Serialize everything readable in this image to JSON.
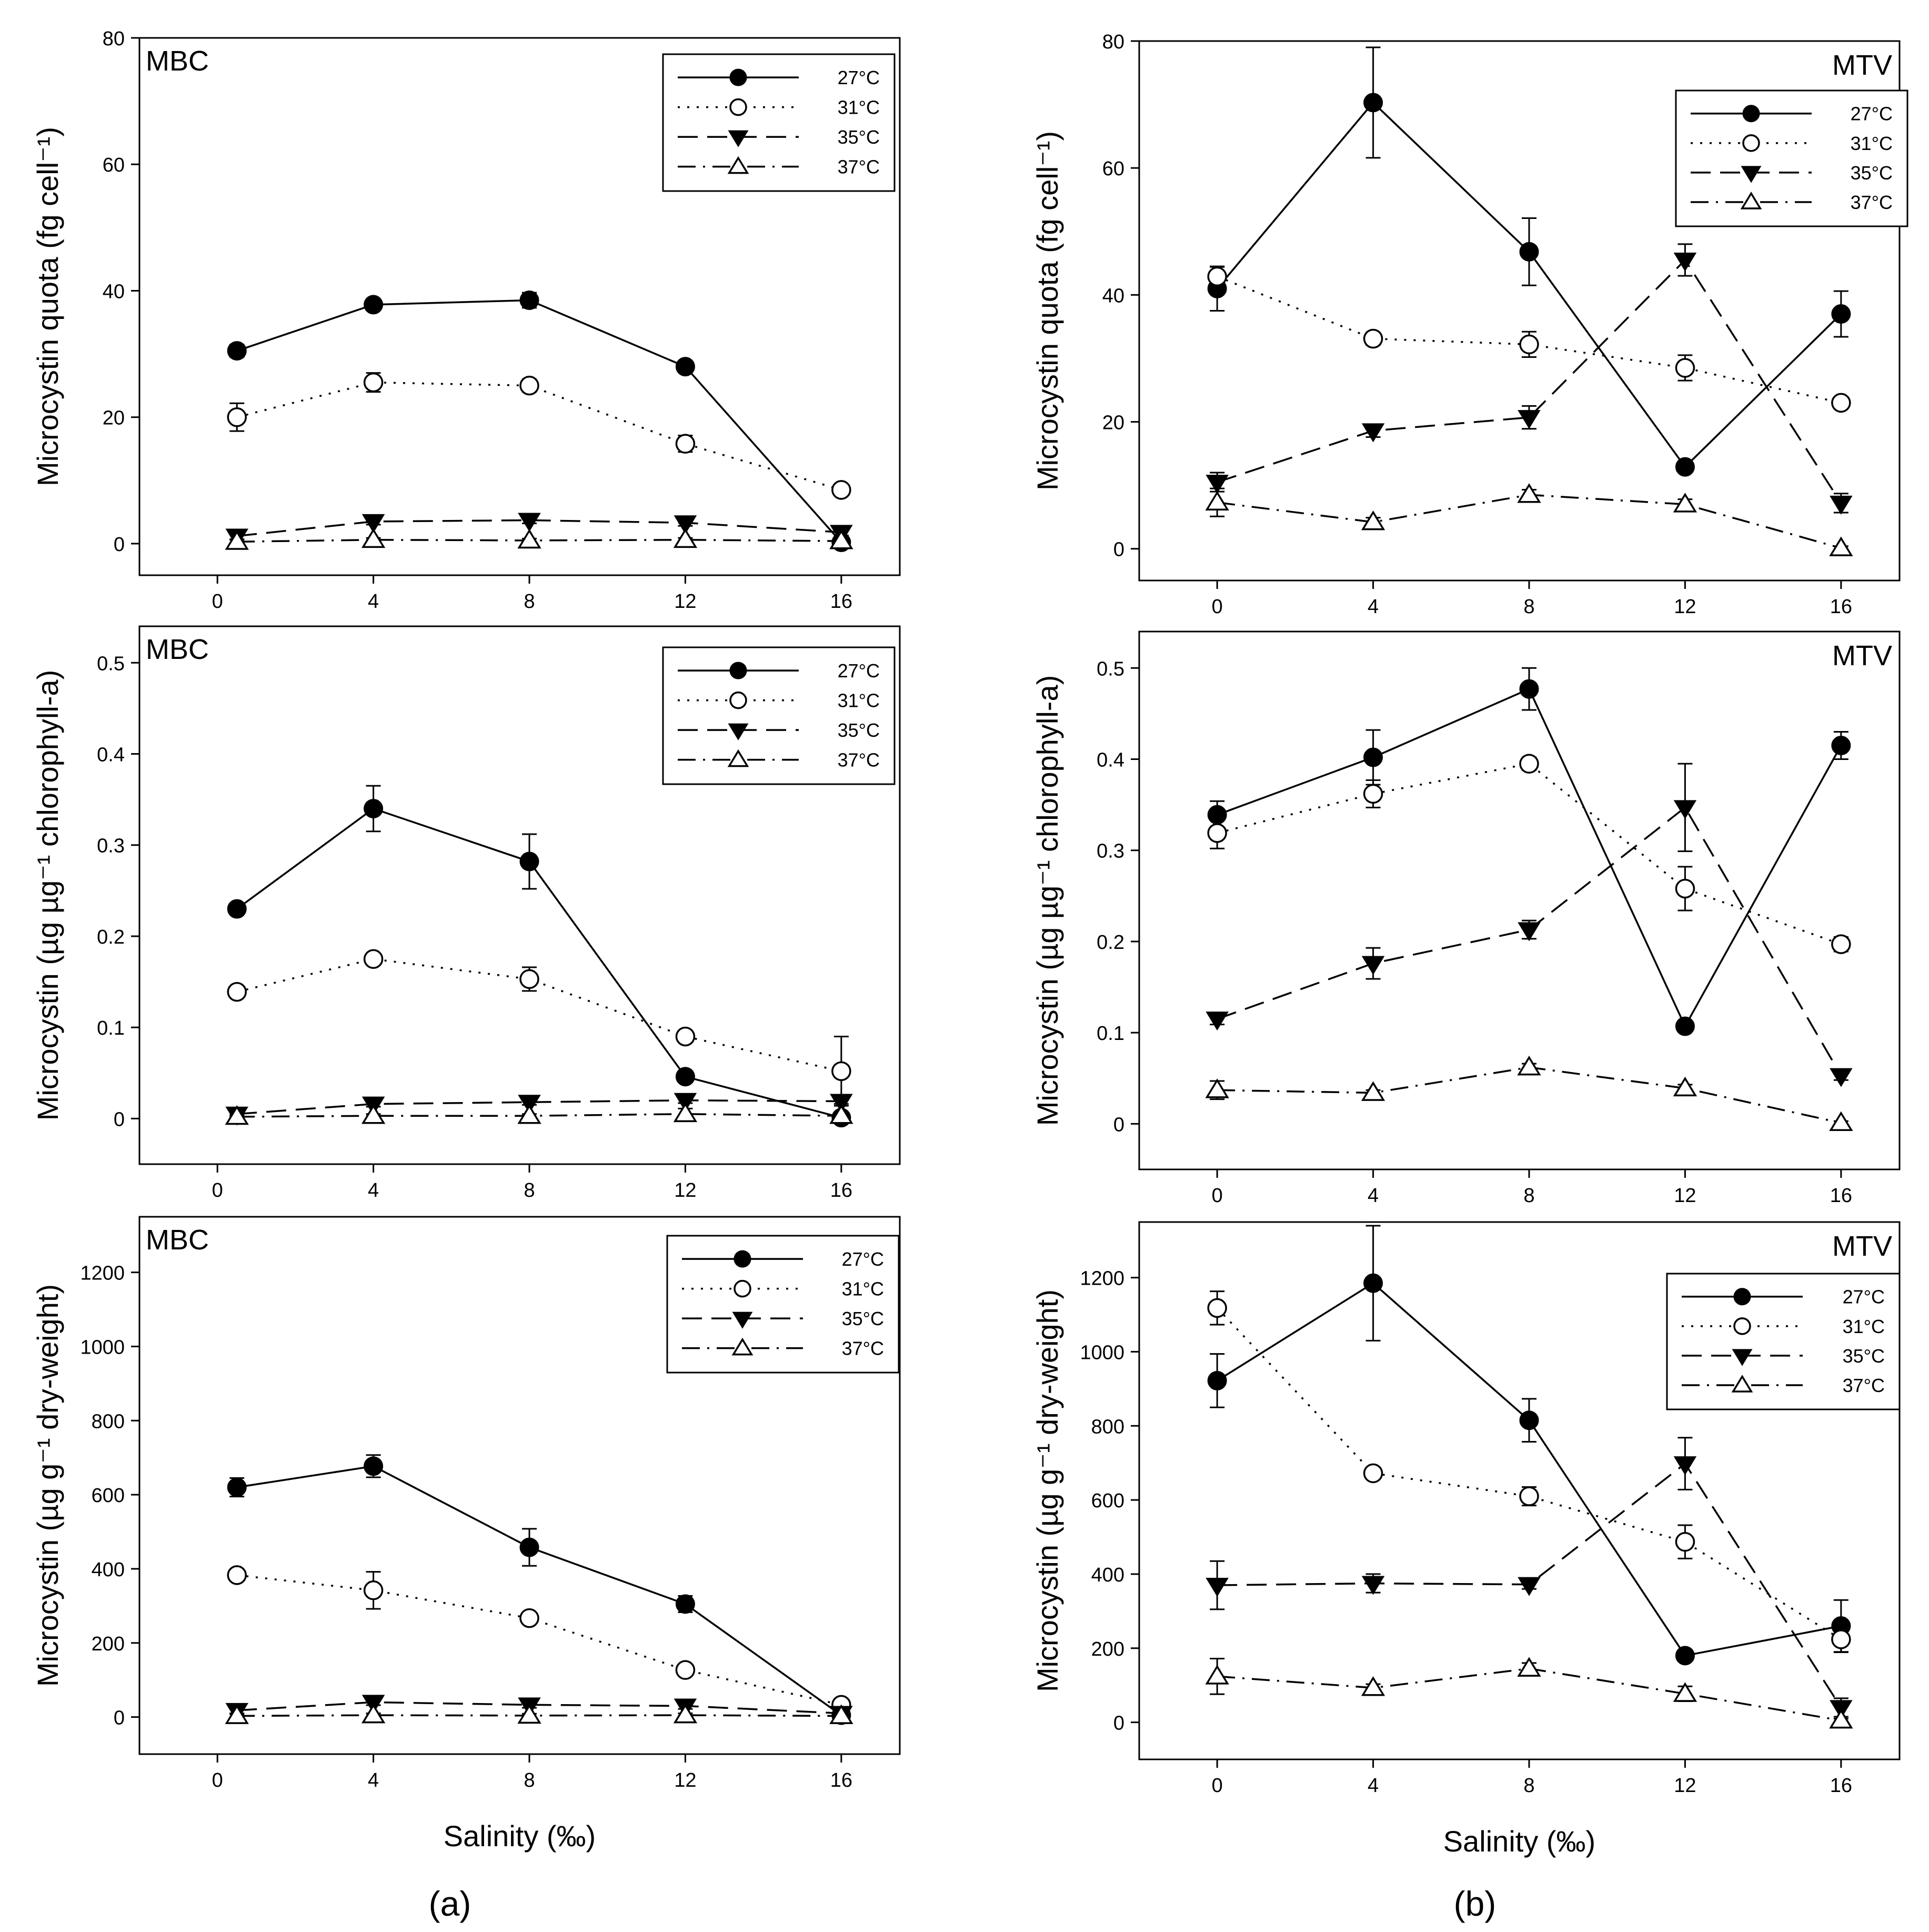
{
  "figure": {
    "panel_a_label": "(a)",
    "panel_b_label": "(b)"
  },
  "legend_labels": [
    "27°C",
    "31°C",
    "35°C",
    "37°C"
  ],
  "chart_data": [
    {
      "id": "a1",
      "type": "line",
      "label": "MBC",
      "ylabel": "Microcystin quota (fg cell⁻¹)",
      "xlabel": "",
      "x": [
        0.5,
        4,
        8,
        12,
        16
      ],
      "xticks": [
        0,
        4,
        8,
        12,
        16
      ],
      "xlim": [
        -2,
        17.5
      ],
      "yticks": [
        0,
        20,
        40,
        60,
        80
      ],
      "ylim": [
        -5,
        80
      ],
      "legend_position": "top-right",
      "series": [
        {
          "name": "27°C",
          "values": [
            30.5,
            37.8,
            38.5,
            28,
            0.2
          ],
          "errors": [
            1,
            0.8,
            1.2,
            0.8,
            0.3
          ]
        },
        {
          "name": "31°C",
          "values": [
            20,
            25.5,
            25,
            15.8,
            8.5
          ],
          "errors": [
            2.2,
            1.5,
            1,
            1.3,
            0.8
          ]
        },
        {
          "name": "35°C",
          "values": [
            1.2,
            3.5,
            3.7,
            3.3,
            1.8
          ],
          "errors": [
            0.5,
            0.5,
            0.5,
            0.5,
            0.5
          ]
        },
        {
          "name": "37°C",
          "values": [
            0.3,
            0.6,
            0.5,
            0.6,
            0.4
          ],
          "errors": [
            0.3,
            0.3,
            0.3,
            0.3,
            0.3
          ]
        }
      ]
    },
    {
      "id": "b1",
      "type": "line",
      "label": "MTV",
      "ylabel": "Microcystin quota (fg cell⁻¹)",
      "xlabel": "",
      "x": [
        0,
        4,
        8,
        12,
        16
      ],
      "xticks": [
        0,
        4,
        8,
        12,
        16
      ],
      "xlim": [
        -2,
        17.5
      ],
      "yticks": [
        0,
        20,
        40,
        60,
        80
      ],
      "ylim": [
        -5,
        80
      ],
      "legend_position": "top-right",
      "series": [
        {
          "name": "27°C",
          "values": [
            41,
            70.3,
            46.8,
            12.9,
            37
          ],
          "errors": [
            3.5,
            8.7,
            5.3,
            0.8,
            3.6
          ]
        },
        {
          "name": "31°C",
          "values": [
            42.9,
            33.1,
            32.2,
            28.5,
            23
          ],
          "errors": [
            1.5,
            1,
            2,
            2,
            0.8
          ]
        },
        {
          "name": "35°C",
          "values": [
            10.5,
            18.6,
            20.7,
            45.5,
            7.2
          ],
          "errors": [
            1.5,
            1,
            1.8,
            2.5,
            1.5
          ]
        },
        {
          "name": "37°C",
          "values": [
            7.3,
            4.2,
            8.5,
            7.0,
            0.1
          ],
          "errors": [
            2.2,
            0.7,
            0.8,
            0.8,
            0.3
          ]
        }
      ]
    },
    {
      "id": "a2",
      "type": "line",
      "label": "MBC",
      "ylabel": "Microcystin (µg µg⁻¹ chlorophyll-a)",
      "xlabel": "",
      "x": [
        0.5,
        4,
        8,
        12,
        16
      ],
      "xticks": [
        0,
        4,
        8,
        12,
        16
      ],
      "xlim": [
        -2,
        17.5
      ],
      "yticks": [
        0,
        0.1,
        0.2,
        0.3,
        0.4,
        0.5
      ],
      "ylim": [
        -0.05,
        0.54
      ],
      "legend_position": "top-right",
      "series": [
        {
          "name": "27°C",
          "values": [
            0.23,
            0.34,
            0.282,
            0.046,
            0.001
          ],
          "errors": [
            0.005,
            0.025,
            0.03,
            0.004,
            0.003
          ]
        },
        {
          "name": "31°C",
          "values": [
            0.139,
            0.175,
            0.153,
            0.09,
            0.052
          ],
          "errors": [
            0.006,
            0.006,
            0.013,
            0.005,
            0.038
          ]
        },
        {
          "name": "35°C",
          "values": [
            0.005,
            0.016,
            0.018,
            0.02,
            0.019
          ],
          "errors": [
            0.003,
            0.003,
            0.003,
            0.003,
            0.003
          ]
        },
        {
          "name": "37°C",
          "values": [
            0.002,
            0.003,
            0.003,
            0.005,
            0.003
          ],
          "errors": [
            0.002,
            0.002,
            0.002,
            0.006,
            0.002
          ]
        }
      ]
    },
    {
      "id": "b2",
      "type": "line",
      "label": "MTV",
      "ylabel": "Microcystin (µg µg⁻¹ chlorophyll-a)",
      "xlabel": "",
      "x": [
        0,
        4,
        8,
        12,
        16
      ],
      "xticks": [
        0,
        4,
        8,
        12,
        16
      ],
      "xlim": [
        -2,
        17.5
      ],
      "yticks": [
        0,
        0.1,
        0.2,
        0.3,
        0.4,
        0.5
      ],
      "ylim": [
        -0.05,
        0.54
      ],
      "legend_position": "top-right",
      "series": [
        {
          "name": "27°C",
          "values": [
            0.339,
            0.402,
            0.477,
            0.107,
            0.415
          ],
          "errors": [
            0.015,
            0.03,
            0.023,
            0.005,
            0.015
          ]
        },
        {
          "name": "31°C",
          "values": [
            0.319,
            0.362,
            0.395,
            0.258,
            0.197
          ],
          "errors": [
            0.017,
            0.015,
            0.007,
            0.024,
            0.008
          ]
        },
        {
          "name": "35°C",
          "values": [
            0.115,
            0.176,
            0.213,
            0.347,
            0.053
          ],
          "errors": [
            0.006,
            0.017,
            0.01,
            0.048,
            0.005
          ]
        },
        {
          "name": "37°C",
          "values": [
            0.037,
            0.034,
            0.062,
            0.039,
            0.001
          ],
          "errors": [
            0.01,
            0.003,
            0.004,
            0.004,
            0.002
          ]
        }
      ]
    },
    {
      "id": "a3",
      "type": "line",
      "label": "MBC",
      "ylabel": "Microcystin (µg g⁻¹ dry-weight)",
      "xlabel": "Salinity (‰)",
      "x": [
        0.5,
        4,
        8,
        12,
        16
      ],
      "xticks": [
        0,
        4,
        8,
        12,
        16
      ],
      "xlim": [
        -2,
        17.5
      ],
      "yticks": [
        0,
        200,
        400,
        600,
        800,
        1000,
        1200
      ],
      "ylim": [
        -100,
        1350
      ],
      "legend_position": "top-right",
      "series": [
        {
          "name": "27°C",
          "values": [
            620,
            677,
            458,
            305,
            5
          ],
          "errors": [
            25,
            30,
            50,
            22,
            8
          ]
        },
        {
          "name": "31°C",
          "values": [
            383,
            342,
            267,
            127,
            33
          ],
          "errors": [
            12,
            50,
            12,
            12,
            8
          ]
        },
        {
          "name": "35°C",
          "values": [
            18,
            40,
            33,
            30,
            10
          ],
          "errors": [
            8,
            8,
            8,
            8,
            8
          ]
        },
        {
          "name": "37°C",
          "values": [
            3,
            5,
            4,
            5,
            3
          ],
          "errors": [
            5,
            5,
            5,
            5,
            5
          ]
        }
      ]
    },
    {
      "id": "b3",
      "type": "line",
      "label": "MTV",
      "ylabel": "Microcystin (µg g⁻¹ dry-weight)",
      "xlabel": "Salinity (‰)",
      "x": [
        0,
        4,
        8,
        12,
        16
      ],
      "xticks": [
        0,
        4,
        8,
        12,
        16
      ],
      "xlim": [
        -2,
        17.5
      ],
      "yticks": [
        0,
        200,
        400,
        600,
        800,
        1000,
        1200
      ],
      "ylim": [
        -100,
        1350
      ],
      "legend_position": "right",
      "series": [
        {
          "name": "27°C",
          "values": [
            922,
            1185,
            815,
            180,
            260
          ],
          "errors": [
            72,
            155,
            58,
            12,
            70
          ]
        },
        {
          "name": "31°C",
          "values": [
            1118,
            672,
            610,
            487,
            224
          ],
          "errors": [
            45,
            15,
            25,
            45,
            35
          ]
        },
        {
          "name": "35°C",
          "values": [
            370,
            375,
            372,
            698,
            40
          ],
          "errors": [
            65,
            25,
            12,
            70,
            25
          ]
        },
        {
          "name": "37°C",
          "values": [
            124,
            93,
            145,
            77,
            5
          ],
          "errors": [
            48,
            10,
            15,
            20,
            5
          ]
        }
      ]
    }
  ]
}
